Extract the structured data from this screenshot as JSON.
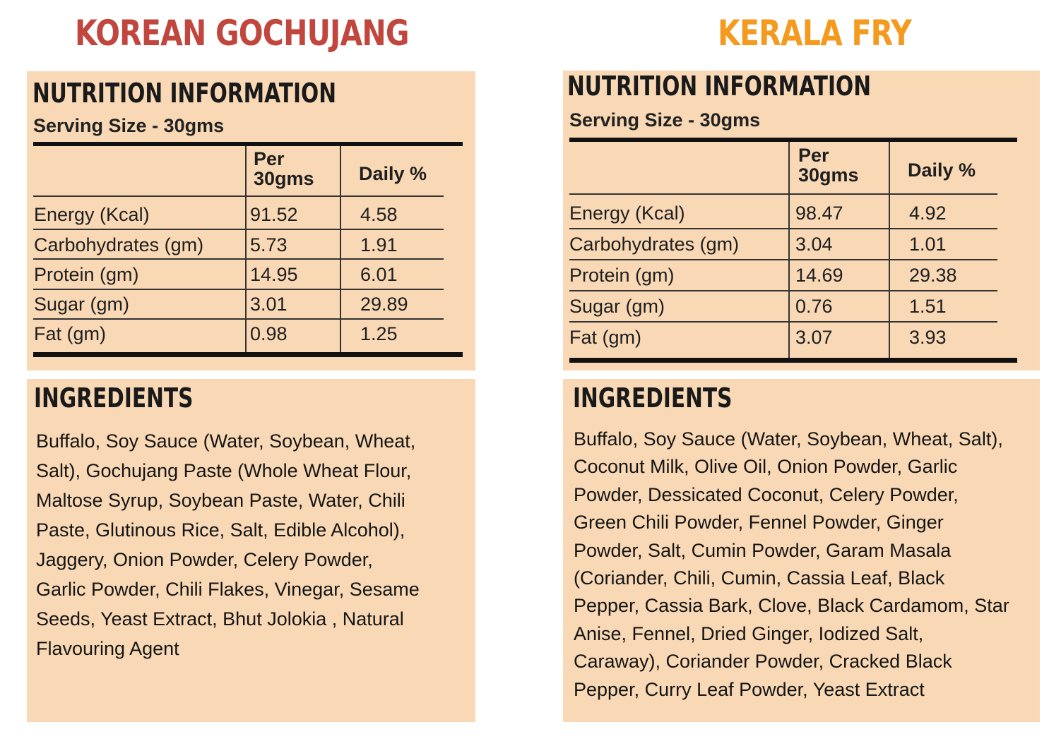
{
  "products": [
    {
      "title": "KOREAN GOCHUJANG",
      "title_color": "#c0463e",
      "nutrition": {
        "heading": "NUTRITION INFORMATION",
        "serving_size": "Serving Size - 30gms",
        "columns": {
          "per": [
            "Per",
            "30gms"
          ],
          "daily": "Daily %"
        },
        "rows": [
          {
            "label": "Energy  (Kcal)",
            "per": "91.52",
            "daily": "4.58"
          },
          {
            "label": "Carbohydrates (gm)",
            "per": "5.73",
            "daily": "1.91"
          },
          {
            "label": "Protein (gm)",
            "per": "14.95",
            "daily": "6.01"
          },
          {
            "label": "Sugar (gm)",
            "per": "3.01",
            "daily": "29.89"
          },
          {
            "label": "Fat (gm)",
            "per": "0.98",
            "daily": "1.25"
          }
        ]
      },
      "ingredients": {
        "heading": "INGREDIENTS",
        "lines": [
          "Buffalo, Soy Sauce (Water, Soybean, Wheat,",
          "Salt), Gochujang Paste (Whole Wheat Flour,",
          "Maltose Syrup, Soybean Paste, Water, Chili",
          "Paste, Glutinous Rice, Salt, Edible Alcohol),",
          "Jaggery, Onion Powder, Celery Powder,",
          "Garlic Powder, Chili Flakes, Vinegar, Sesame",
          "Seeds, Yeast Extract, Bhut Jolokia , Natural",
          "Flavouring Agent"
        ]
      }
    },
    {
      "title": "KERALA FRY",
      "title_color": "#f39a1f",
      "nutrition": {
        "heading": "NUTRITION INFORMATION",
        "serving_size": "Serving Size - 30gms",
        "columns": {
          "per": [
            "Per",
            "30gms"
          ],
          "daily": "Daily %"
        },
        "rows": [
          {
            "label": "Energy  (Kcal)",
            "per": "98.47",
            "daily": "4.92"
          },
          {
            "label": "Carbohydrates (gm)",
            "per": "3.04",
            "daily": "1.01"
          },
          {
            "label": "Protein (gm)",
            "per": "14.69",
            "daily": "29.38"
          },
          {
            "label": "Sugar (gm)",
            "per": "0.76",
            "daily": "1.51"
          },
          {
            "label": "Fat (gm)",
            "per": "3.07",
            "daily": "3.93"
          }
        ]
      },
      "ingredients": {
        "heading": "INGREDIENTS",
        "lines": [
          "Buffalo, Soy Sauce (Water, Soybean, Wheat, Salt),",
          "Coconut Milk, Olive Oil, Onion Powder, Garlic",
          "Powder, Dessicated Coconut, Celery Powder,",
          "Green Chili Powder, Fennel Powder, Ginger",
          "Powder, Salt, Cumin Powder, Garam Masala",
          "(Coriander, Chili, Cumin, Cassia Leaf, Black",
          "Pepper, Cassia Bark, Clove, Black Cardamom, Star",
          "Anise, Fennel, Dried Ginger, Iodized Salt,",
          "Caraway), Coriander Powder, Cracked Black",
          "Pepper, Curry Leaf Powder, Yeast Extract"
        ]
      }
    }
  ],
  "colors": {
    "panel_background": "#f8d8b5"
  }
}
